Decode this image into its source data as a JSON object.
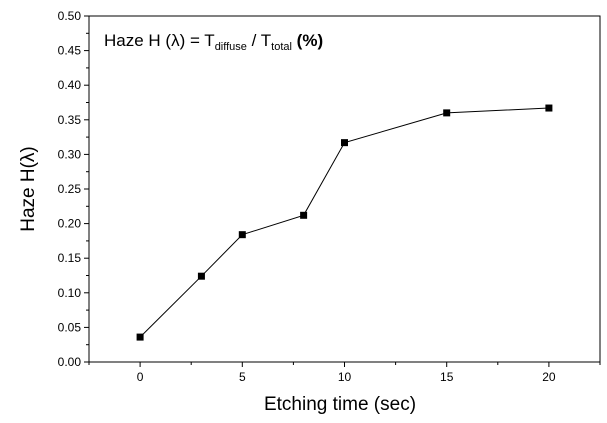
{
  "chart_data": {
    "type": "line",
    "x": [
      0,
      3,
      5,
      8,
      10,
      15,
      20
    ],
    "series": [
      {
        "values": [
          0.036,
          0.124,
          0.184,
          0.212,
          0.317,
          0.36,
          0.367
        ]
      }
    ],
    "xlabel": "Etching time (sec)",
    "ylabel": "Haze H(λ)",
    "xlim": [
      -2.5,
      22.5
    ],
    "ylim": [
      0.0,
      0.5
    ],
    "xticks": [
      "0",
      "5",
      "10",
      "15",
      "20"
    ],
    "yticks": [
      "0.00",
      "0.05",
      "0.10",
      "0.15",
      "0.20",
      "0.25",
      "0.30",
      "0.35",
      "0.40",
      "0.45",
      "0.50"
    ],
    "annotation": {
      "prefix": "Haze H (λ) = T",
      "sub1": "diffuse",
      "mid": " / T",
      "sub2": "total",
      "suffix": " (%)"
    },
    "grid": false,
    "marker": "square",
    "color": "#000000"
  }
}
